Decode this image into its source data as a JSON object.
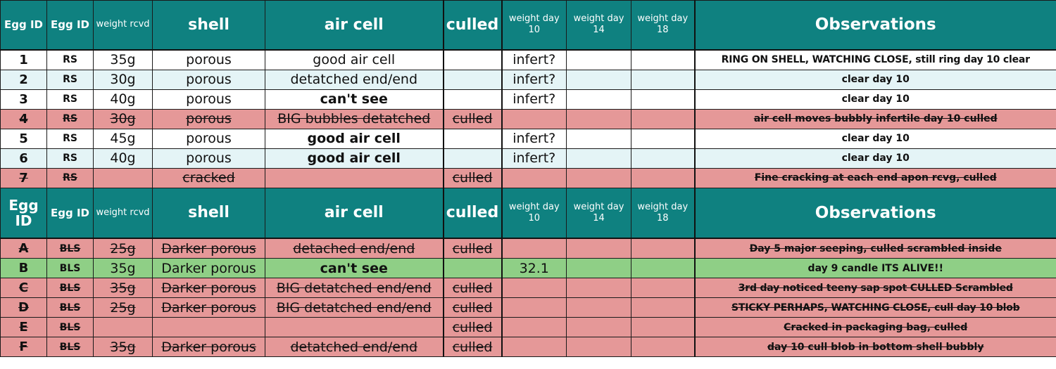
{
  "header": {
    "egg_id": "Egg ID",
    "egg_id_2": "Egg ID",
    "weight_rcvd": "weight rcvd",
    "shell": "shell",
    "air_cell": "air cell",
    "culled": "culled",
    "weight_day_10": "weight day 10",
    "weight_day_14": "weight day 14",
    "weight_day_18": "weight day 18",
    "observations": "Observations"
  },
  "rows_rs": [
    {
      "id": "1",
      "src": "RS",
      "weight": "35g",
      "shell": "porous",
      "air": "good air cell",
      "culled": "",
      "w10": "infert?",
      "w14": "",
      "w18": "",
      "obs": "RING ON SHELL, WATCHING CLOSE, still ring day 10 clear"
    },
    {
      "id": "2",
      "src": "RS",
      "weight": "30g",
      "shell": "porous",
      "air": "detatched end/end",
      "culled": "",
      "w10": "infert?",
      "w14": "",
      "w18": "",
      "obs": "clear day 10"
    },
    {
      "id": "3",
      "src": "RS",
      "weight": "40g",
      "shell": "porous",
      "air": "can't see",
      "culled": "",
      "w10": "infert?",
      "w14": "",
      "w18": "",
      "obs": "clear day 10"
    },
    {
      "id": "4",
      "src": "RS",
      "weight": "30g",
      "shell": "porous",
      "air": "BIG bubbles detatched",
      "culled": "culled",
      "w10": "",
      "w14": "",
      "w18": "",
      "obs": "air cell moves bubbly infertile day 10 culled"
    },
    {
      "id": "5",
      "src": "RS",
      "weight": "45g",
      "shell": "porous",
      "air": "good air cell",
      "culled": "",
      "w10": "infert?",
      "w14": "",
      "w18": "",
      "obs": "clear day 10"
    },
    {
      "id": "6",
      "src": "RS",
      "weight": "40g",
      "shell": "porous",
      "air": "good air cell",
      "culled": "",
      "w10": "infert?",
      "w14": "",
      "w18": "",
      "obs": "clear day 10"
    },
    {
      "id": "7",
      "src": "RS",
      "weight": "",
      "shell": "cracked",
      "air": "",
      "culled": "culled",
      "w10": "",
      "w14": "",
      "w18": "",
      "obs": "Fine cracking at each end apon rcvg, culled"
    }
  ],
  "rows_bls": [
    {
      "id": "A",
      "src": "BLS",
      "weight": "25g",
      "shell": "Darker porous",
      "air": "detached end/end",
      "culled": "culled",
      "w10": "",
      "w14": "",
      "w18": "",
      "obs": "Day 5 major seeping, culled scrambled inside"
    },
    {
      "id": "B",
      "src": "BLS",
      "weight": "35g",
      "shell": "Darker porous",
      "air": "can't see",
      "culled": "",
      "w10": "32.1",
      "w14": "",
      "w18": "",
      "obs": "day 9 candle ITS ALIVE!!"
    },
    {
      "id": "C",
      "src": "BLS",
      "weight": "35g",
      "shell": "Darker porous",
      "air": "BIG detatched end/end",
      "culled": "culled",
      "w10": "",
      "w14": "",
      "w18": "",
      "obs": "3rd day noticed teeny sap spot CULLED Scrambled"
    },
    {
      "id": "D",
      "src": "BLS",
      "weight": "25g",
      "shell": "Darker porous",
      "air": "BIG detatched end/end",
      "culled": "culled",
      "w10": "",
      "w14": "",
      "w18": "",
      "obs": "STICKY PERHAPS, WATCHING CLOSE, cull day 10 blob"
    },
    {
      "id": "E",
      "src": "BLS",
      "weight": "",
      "shell": "",
      "air": "",
      "culled": "culled",
      "w10": "",
      "w14": "",
      "w18": "",
      "obs": "Cracked in packaging bag, culled"
    },
    {
      "id": "F",
      "src": "BLS",
      "weight": "35g",
      "shell": "Darker porous",
      "air": "detatched end/end",
      "culled": "culled",
      "w10": "",
      "w14": "",
      "w18": "",
      "obs": "day 10 cull  blob in bottom shell bubbly"
    }
  ],
  "colors": {
    "header": "#0f8180",
    "culled_row": "#e59898",
    "alive_row": "#8fcf86",
    "alt_row": "#e4f4f6"
  }
}
